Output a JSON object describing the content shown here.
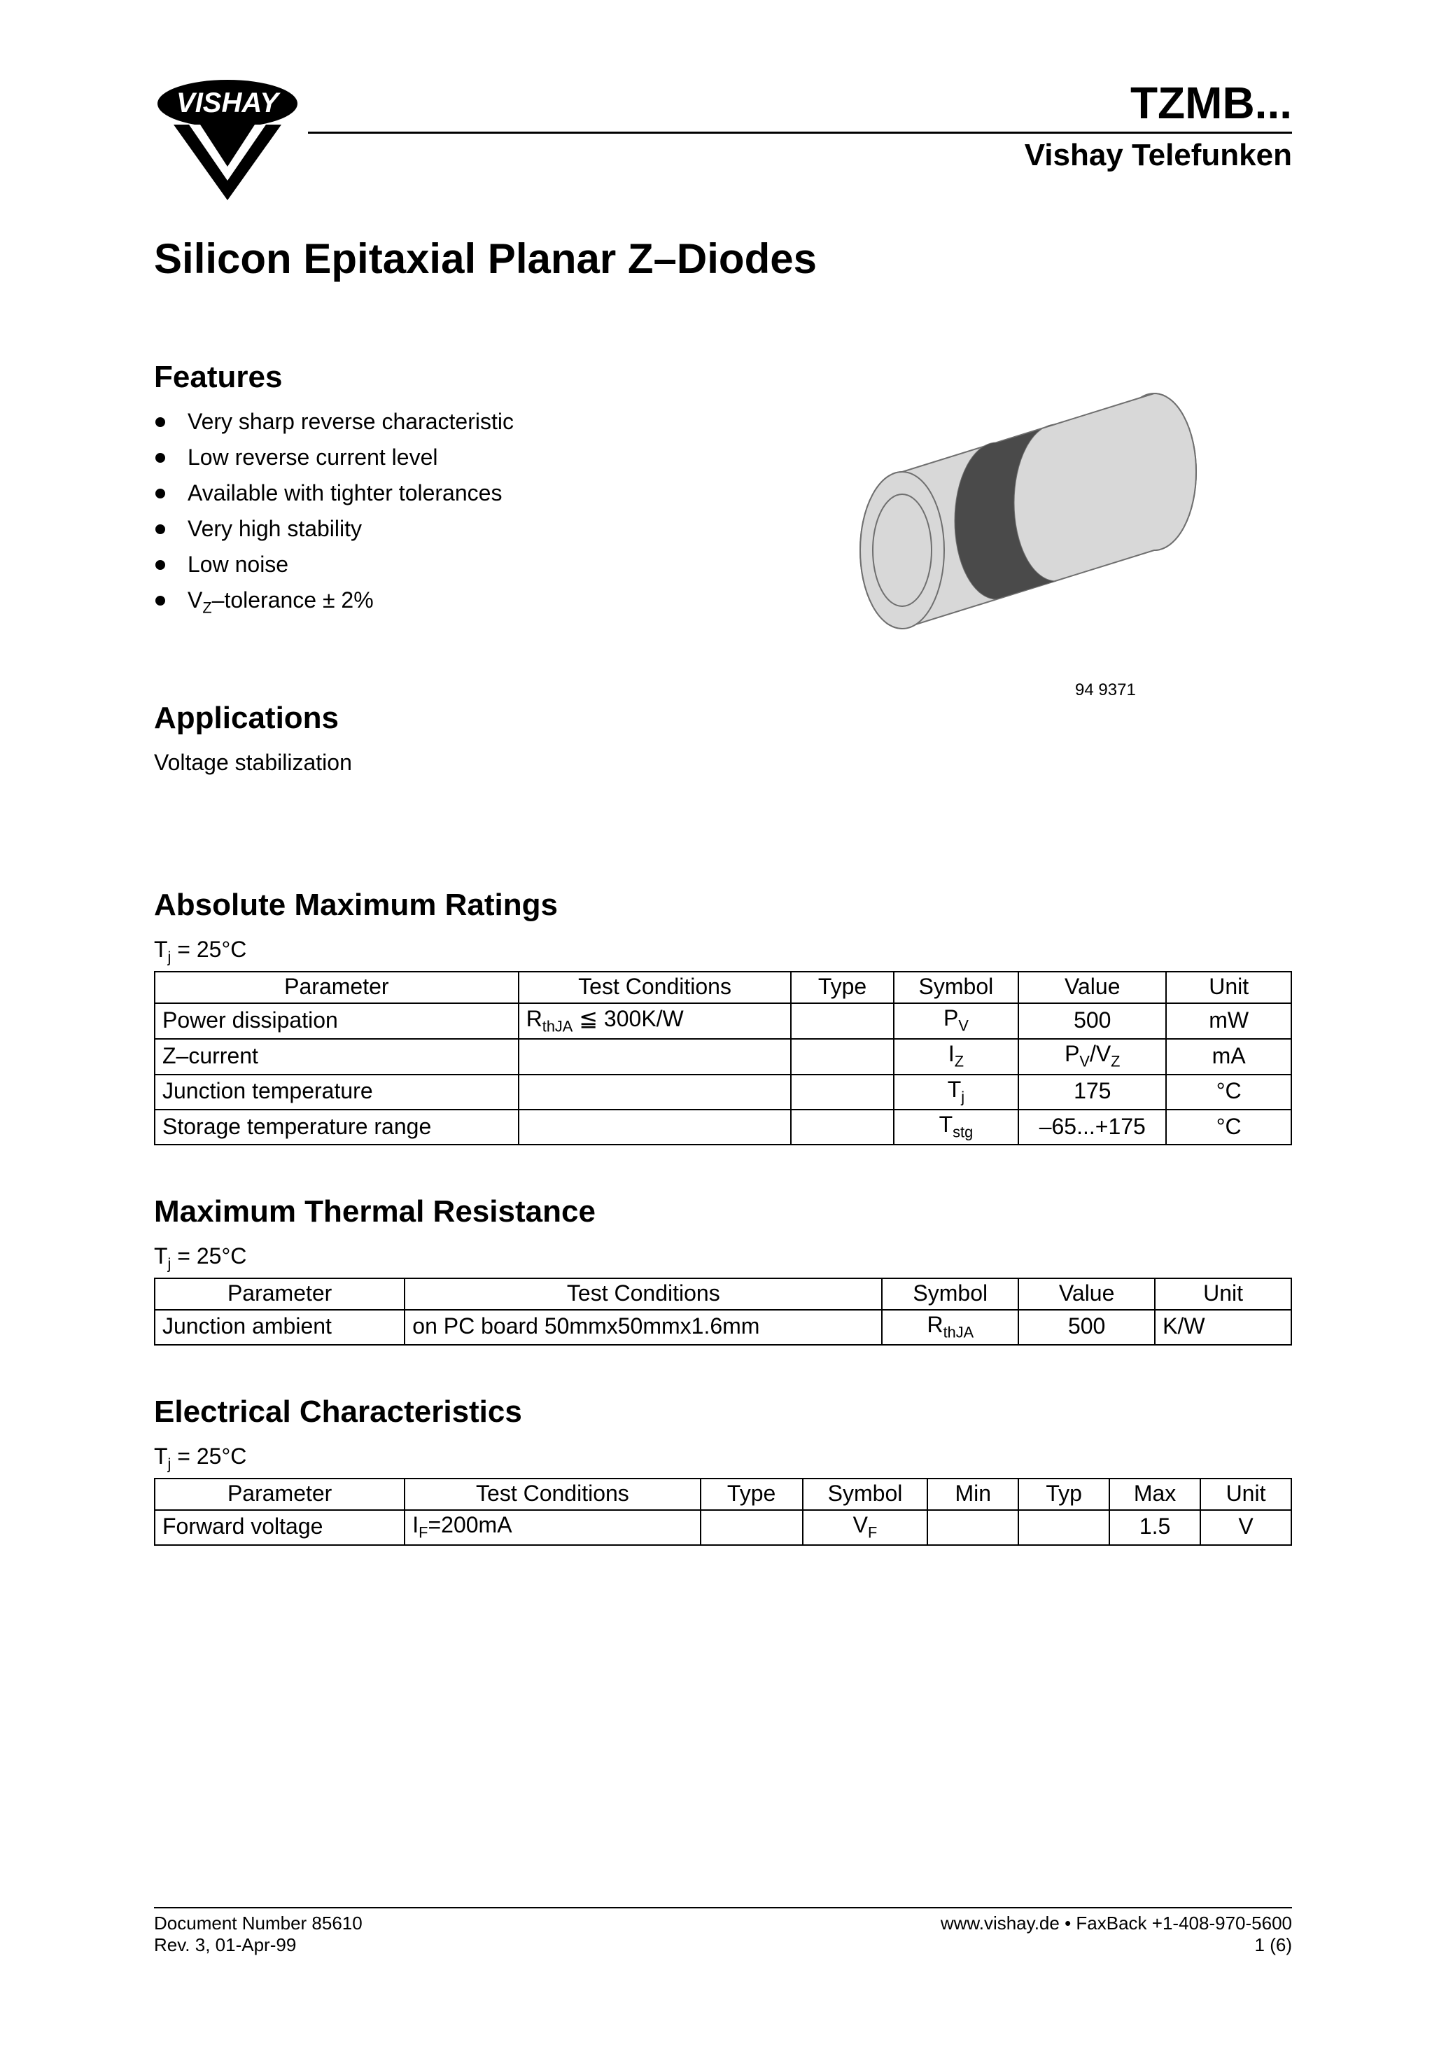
{
  "header": {
    "part_number": "TZMB...",
    "brand": "Vishay Telefunken",
    "logo_text": "VISHAY"
  },
  "title": "Silicon Epitaxial Planar Z–Diodes",
  "features": {
    "heading": "Features",
    "items": [
      "Very sharp reverse characteristic",
      "Low reverse current level",
      "Available with tighter tolerances",
      "Very high stability",
      "Low noise",
      "V_Z–tolerance ± 2%"
    ]
  },
  "image_caption": "94 9371",
  "component_colors": {
    "body_fill": "#d8d8d8",
    "body_stroke": "#6f6f6f",
    "band_fill": "#4a4a4a"
  },
  "applications": {
    "heading": "Applications",
    "text": "Voltage stabilization"
  },
  "abs_max": {
    "heading": "Absolute Maximum Ratings",
    "condition": "T_j = 25°C",
    "col_widths_pct": [
      32,
      24,
      9,
      11,
      13,
      11
    ],
    "headers": [
      "Parameter",
      "Test Conditions",
      "Type",
      "Symbol",
      "Value",
      "Unit"
    ],
    "rows": [
      {
        "parameter": "Power dissipation",
        "test": "R_thJA ≦ 300K/W",
        "type": "",
        "symbol": "P_V",
        "value": "500",
        "unit": "mW"
      },
      {
        "parameter": "Z–current",
        "test": "",
        "type": "",
        "symbol": "I_Z",
        "value": "P_V/V_Z",
        "unit": "mA"
      },
      {
        "parameter": "Junction temperature",
        "test": "",
        "type": "",
        "symbol": "T_j",
        "value": "175",
        "unit": "°C"
      },
      {
        "parameter": "Storage temperature range",
        "test": "",
        "type": "",
        "symbol": "T_stg",
        "value": "–65...+175",
        "unit": "°C"
      }
    ]
  },
  "thermal": {
    "heading": "Maximum Thermal Resistance",
    "condition": "T_j = 25°C",
    "col_widths_pct": [
      22,
      42,
      12,
      12,
      12
    ],
    "headers": [
      "Parameter",
      "Test Conditions",
      "Symbol",
      "Value",
      "Unit"
    ],
    "rows": [
      {
        "parameter": "Junction ambient",
        "test": "on PC board 50mmx50mmx1.6mm",
        "symbol": "R_thJA",
        "value": "500",
        "unit": "K/W"
      }
    ]
  },
  "electrical": {
    "heading": "Electrical Characteristics",
    "condition": "T_j = 25°C",
    "col_widths_pct": [
      22,
      26,
      9,
      11,
      8,
      8,
      8,
      8
    ],
    "headers": [
      "Parameter",
      "Test Conditions",
      "Type",
      "Symbol",
      "Min",
      "Typ",
      "Max",
      "Unit"
    ],
    "rows": [
      {
        "parameter": "Forward voltage",
        "test": "I_F=200mA",
        "type": "",
        "symbol": "V_F",
        "min": "",
        "typ": "",
        "max": "1.5",
        "unit": "V"
      }
    ]
  },
  "footer": {
    "left1": "Document Number 85610",
    "left2": "Rev. 3, 01-Apr-99",
    "right1": "www.vishay.de • FaxBack +1-408-970-5600",
    "right2": "1 (6)"
  }
}
